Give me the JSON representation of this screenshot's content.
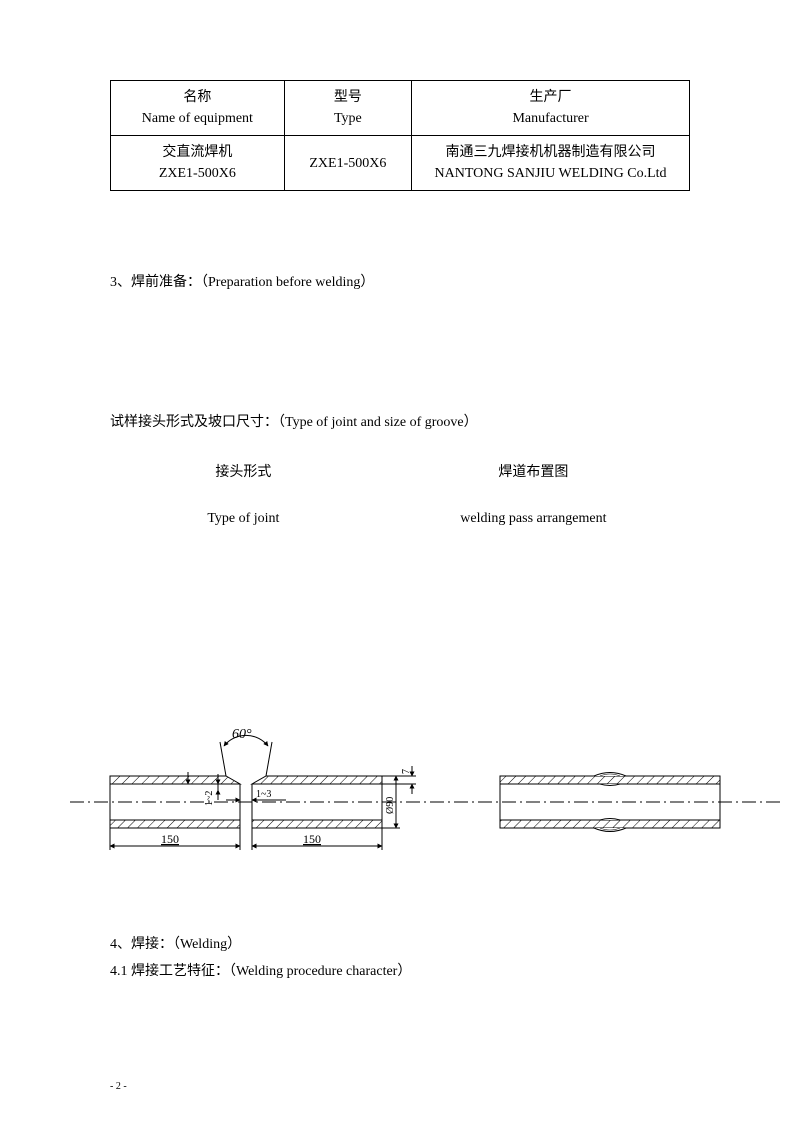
{
  "table": {
    "headers": {
      "name_cn": "名称",
      "name_en": "Name of equipment",
      "type_cn": "型号",
      "type_en": "Type",
      "mfr_cn": "生产厂",
      "mfr_en": "Manufacturer"
    },
    "row": {
      "name_cn": "交直流焊机",
      "name_en": "ZXE1-500X6",
      "type": "ZXE1-500X6",
      "mfr_cn": "南通三九焊接机机器制造有限公司",
      "mfr_en": "NANTONG SANJIU WELDING Co.Ltd"
    }
  },
  "section3": "3、焊前准备：（Preparation before welding）",
  "joint_groove": "试样接头形式及坡口尺寸：（Type of joint and size of groove）",
  "labels": {
    "joint_cn": "接头形式",
    "joint_en": "Type of joint",
    "pass_cn": "焊道布置图",
    "pass_en": "welding pass arrangement"
  },
  "diagram": {
    "angle": "60°",
    "gap_v": "1~2",
    "gap_h": "1~3",
    "height": "Ø90",
    "t": "7",
    "len": "150",
    "stroke": "#000000",
    "hatch_spacing": 7,
    "pipe_wall": 8,
    "pipe_outer_h": 52,
    "font_family": "Times New Roman, serif",
    "dim_font": 11
  },
  "section4": {
    "l1": "4、焊接：（Welding）",
    "l2": "4.1  焊接工艺特征：（Welding procedure character）"
  },
  "page_num": "- 2 -"
}
